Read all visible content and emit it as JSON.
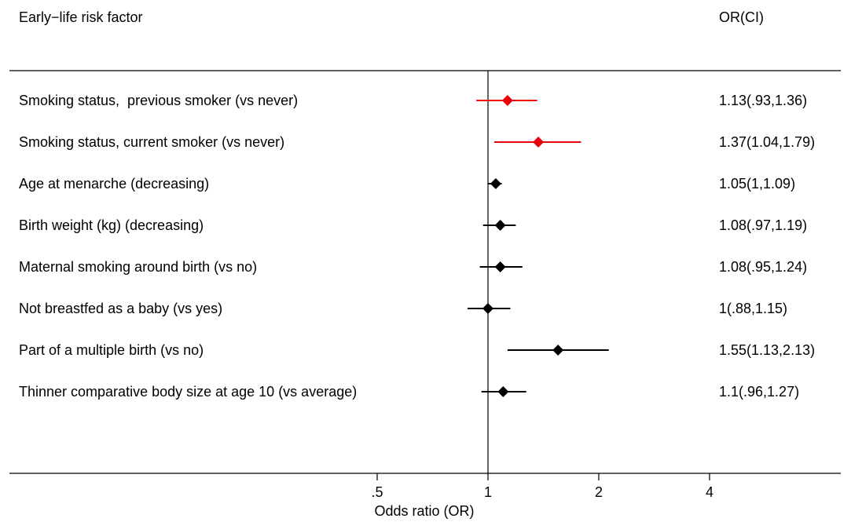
{
  "chart_data": {
    "type": "forest",
    "header": {
      "factor_label": "Early−life risk factor",
      "ci_label": "OR(CI)"
    },
    "xlabel": "Odds ratio (OR)",
    "x_scale": "log2",
    "xlim": [
      0.5,
      4
    ],
    "x_ticks": [
      {
        "value": 0.5,
        "label": ".5"
      },
      {
        "value": 1,
        "label": "1"
      },
      {
        "value": 2,
        "label": "2"
      },
      {
        "value": 4,
        "label": "4"
      }
    ],
    "reference_line": 1,
    "colors": {
      "highlight": "#e8000b",
      "default": "#000000"
    },
    "rows": [
      {
        "label": "Smoking status,  previous smoker (vs never)",
        "or": 1.13,
        "lo": 0.93,
        "hi": 1.36,
        "text": "1.13(.93,1.36)",
        "highlight": true
      },
      {
        "label": "Smoking status, current smoker (vs never)",
        "or": 1.37,
        "lo": 1.04,
        "hi": 1.79,
        "text": "1.37(1.04,1.79)",
        "highlight": true
      },
      {
        "label": "Age at menarche (decreasing)",
        "or": 1.05,
        "lo": 1.0,
        "hi": 1.09,
        "text": "1.05(1,1.09)",
        "highlight": false
      },
      {
        "label": "Birth weight (kg) (decreasing)",
        "or": 1.08,
        "lo": 0.97,
        "hi": 1.19,
        "text": "1.08(.97,1.19)",
        "highlight": false
      },
      {
        "label": "Maternal smoking around birth (vs no)",
        "or": 1.08,
        "lo": 0.95,
        "hi": 1.24,
        "text": "1.08(.95,1.24)",
        "highlight": false
      },
      {
        "label": "Not breastfed as a baby (vs yes)",
        "or": 1.0,
        "lo": 0.88,
        "hi": 1.15,
        "text": "1(.88,1.15)",
        "highlight": false
      },
      {
        "label": "Part of a multiple birth (vs no)",
        "or": 1.55,
        "lo": 1.13,
        "hi": 2.13,
        "text": "1.55(1.13,2.13)",
        "highlight": false
      },
      {
        "label": "Thinner comparative body size at age 10 (vs average)",
        "or": 1.1,
        "lo": 0.96,
        "hi": 1.27,
        "text": "1.1(.96,1.27)",
        "highlight": false
      }
    ]
  }
}
